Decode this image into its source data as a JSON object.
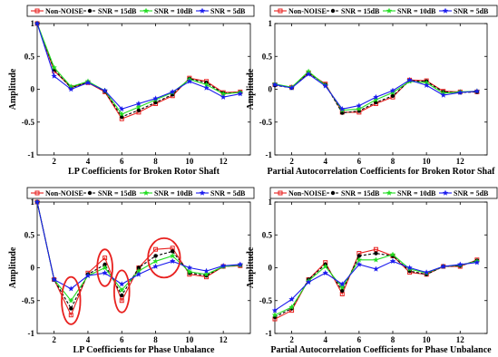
{
  "series_styles": [
    {
      "color": "#e8211f",
      "marker": "square",
      "dash": ""
    },
    {
      "color": "#000000",
      "marker": "circle",
      "dash": "3,2"
    },
    {
      "color": "#22dd22",
      "marker": "star",
      "dash": ""
    },
    {
      "color": "#1a1aee",
      "marker": "star",
      "dash": ""
    }
  ],
  "chart_data": [
    {
      "type": "line",
      "xlabel": "LP Coefficients for Broken Rotor Shaft",
      "ylabel": "Amplitude",
      "xlim": [
        1,
        13.6
      ],
      "ylim": [
        -1,
        1
      ],
      "xticks": [
        2,
        4,
        6,
        8,
        10,
        12
      ],
      "yticks": [
        -1,
        -0.5,
        0,
        0.5,
        1
      ],
      "grid": false,
      "legend": "top",
      "x": [
        1,
        2,
        3,
        4,
        5,
        6,
        7,
        8,
        9,
        10,
        11,
        12,
        13
      ],
      "series": [
        {
          "name": "Non-NOISE",
          "values": [
            1.0,
            0.28,
            0.03,
            0.1,
            -0.04,
            -0.45,
            -0.35,
            -0.22,
            -0.1,
            0.17,
            0.12,
            -0.05,
            -0.04
          ]
        },
        {
          "name": "SNR = 15dB",
          "values": [
            1.0,
            0.3,
            0.02,
            0.11,
            -0.03,
            -0.42,
            -0.32,
            -0.2,
            -0.08,
            0.16,
            0.1,
            -0.06,
            -0.05
          ]
        },
        {
          "name": "SNR = 10dB",
          "values": [
            1.0,
            0.33,
            0.04,
            0.12,
            -0.02,
            -0.38,
            -0.27,
            -0.16,
            -0.05,
            0.15,
            0.07,
            -0.07,
            -0.05
          ]
        },
        {
          "name": "SNR = 5dB",
          "values": [
            1.0,
            0.2,
            0.0,
            0.1,
            -0.02,
            -0.3,
            -0.22,
            -0.14,
            -0.04,
            0.12,
            0.02,
            -0.12,
            -0.07
          ]
        }
      ]
    },
    {
      "type": "line",
      "xlabel": "Partial Autocorrelation Coefficients for Broken Rotor Shaf",
      "ylabel": "Amplitude",
      "xlim": [
        1,
        13.6
      ],
      "ylim": [
        -1,
        1
      ],
      "xticks": [
        2,
        4,
        6,
        8,
        10,
        12
      ],
      "yticks": [
        -1,
        -0.5,
        0,
        0.5,
        1
      ],
      "grid": false,
      "legend": "top",
      "x": [
        1,
        2,
        3,
        4,
        5,
        6,
        7,
        8,
        9,
        10,
        11,
        12,
        13
      ],
      "series": [
        {
          "name": "Non-NOISE",
          "values": [
            0.07,
            0.03,
            0.25,
            0.08,
            -0.35,
            -0.35,
            -0.22,
            -0.12,
            0.14,
            0.13,
            -0.03,
            -0.04,
            -0.04
          ]
        },
        {
          "name": "SNR = 15dB",
          "values": [
            0.06,
            0.02,
            0.25,
            0.07,
            -0.36,
            -0.33,
            -0.2,
            -0.1,
            0.13,
            0.12,
            -0.04,
            -0.05,
            -0.04
          ]
        },
        {
          "name": "SNR = 10dB",
          "values": [
            0.08,
            0.03,
            0.27,
            0.06,
            -0.32,
            -0.3,
            -0.16,
            -0.05,
            0.12,
            0.1,
            -0.06,
            -0.04,
            -0.03
          ]
        },
        {
          "name": "SNR = 5dB",
          "values": [
            0.07,
            0.02,
            0.23,
            0.05,
            -0.3,
            -0.25,
            -0.12,
            -0.02,
            0.14,
            0.06,
            -0.09,
            -0.05,
            -0.03
          ]
        }
      ]
    },
    {
      "type": "line",
      "xlabel": "LP Coefficients for Phase Unbalance",
      "ylabel": "Amplitude",
      "xlim": [
        1,
        13.6
      ],
      "ylim": [
        -1,
        1
      ],
      "xticks": [
        2,
        4,
        6,
        8,
        10,
        12
      ],
      "yticks": [
        -1,
        -0.5,
        0,
        0.5,
        1
      ],
      "grid": false,
      "legend": "top",
      "x": [
        1,
        2,
        3,
        4,
        5,
        6,
        7,
        8,
        9,
        10,
        11,
        12,
        13
      ],
      "series": [
        {
          "name": "Non-NOISE",
          "values": [
            1.0,
            -0.18,
            -0.72,
            -0.08,
            0.15,
            -0.5,
            0.0,
            0.28,
            0.3,
            -0.1,
            -0.14,
            0.02,
            0.03
          ]
        },
        {
          "name": "SNR = 15dB",
          "values": [
            1.0,
            -0.18,
            -0.62,
            -0.1,
            0.05,
            -0.42,
            0.0,
            0.18,
            0.25,
            -0.08,
            -0.12,
            0.02,
            0.04
          ]
        },
        {
          "name": "SNR = 10dB",
          "values": [
            1.0,
            -0.18,
            -0.5,
            -0.12,
            0.0,
            -0.34,
            -0.05,
            0.1,
            0.18,
            -0.06,
            -0.1,
            0.02,
            0.04
          ]
        },
        {
          "name": "SNR = 5dB",
          "values": [
            1.0,
            -0.18,
            -0.32,
            -0.12,
            -0.08,
            -0.25,
            -0.1,
            0.02,
            0.1,
            0.0,
            -0.05,
            0.03,
            0.05
          ]
        }
      ],
      "annotations": [
        {
          "shape": "ellipse",
          "x": 3,
          "y": -0.5,
          "rx": 0.55,
          "ry": 0.36
        },
        {
          "shape": "ellipse",
          "x": 5,
          "y": 0.0,
          "rx": 0.45,
          "ry": 0.28
        },
        {
          "shape": "ellipse",
          "x": 6,
          "y": -0.36,
          "rx": 0.45,
          "ry": 0.32
        },
        {
          "shape": "ellipse",
          "x": 8.5,
          "y": 0.15,
          "rx": 0.95,
          "ry": 0.3
        }
      ]
    },
    {
      "type": "line",
      "xlabel": "Partial Autocorrelation Coefficients for Phase Unbalance",
      "ylabel": "Amplitude",
      "xlim": [
        1,
        13.6
      ],
      "ylim": [
        -1,
        1
      ],
      "xticks": [
        2,
        4,
        6,
        8,
        10,
        12
      ],
      "yticks": [
        -1,
        -0.5,
        0,
        0.5,
        1
      ],
      "grid": false,
      "legend": "top",
      "x": [
        1,
        2,
        3,
        4,
        5,
        6,
        7,
        8,
        9,
        10,
        11,
        12,
        13
      ],
      "series": [
        {
          "name": "Non-NOISE",
          "values": [
            -0.78,
            -0.65,
            -0.18,
            0.08,
            -0.4,
            0.22,
            0.28,
            0.18,
            -0.07,
            -0.1,
            0.02,
            0.02,
            0.12
          ]
        },
        {
          "name": "SNR = 15dB",
          "values": [
            -0.75,
            -0.62,
            -0.18,
            0.05,
            -0.35,
            0.18,
            0.22,
            0.18,
            -0.05,
            -0.1,
            0.02,
            0.03,
            0.11
          ]
        },
        {
          "name": "SNR = 10dB",
          "values": [
            -0.72,
            -0.6,
            -0.2,
            0.02,
            -0.3,
            0.12,
            0.12,
            0.2,
            -0.02,
            -0.08,
            0.02,
            0.04,
            0.1
          ]
        },
        {
          "name": "SNR = 5dB",
          "values": [
            -0.65,
            -0.48,
            -0.22,
            -0.08,
            -0.25,
            0.05,
            -0.02,
            0.1,
            0.0,
            -0.07,
            0.02,
            0.05,
            0.08
          ]
        }
      ]
    }
  ]
}
